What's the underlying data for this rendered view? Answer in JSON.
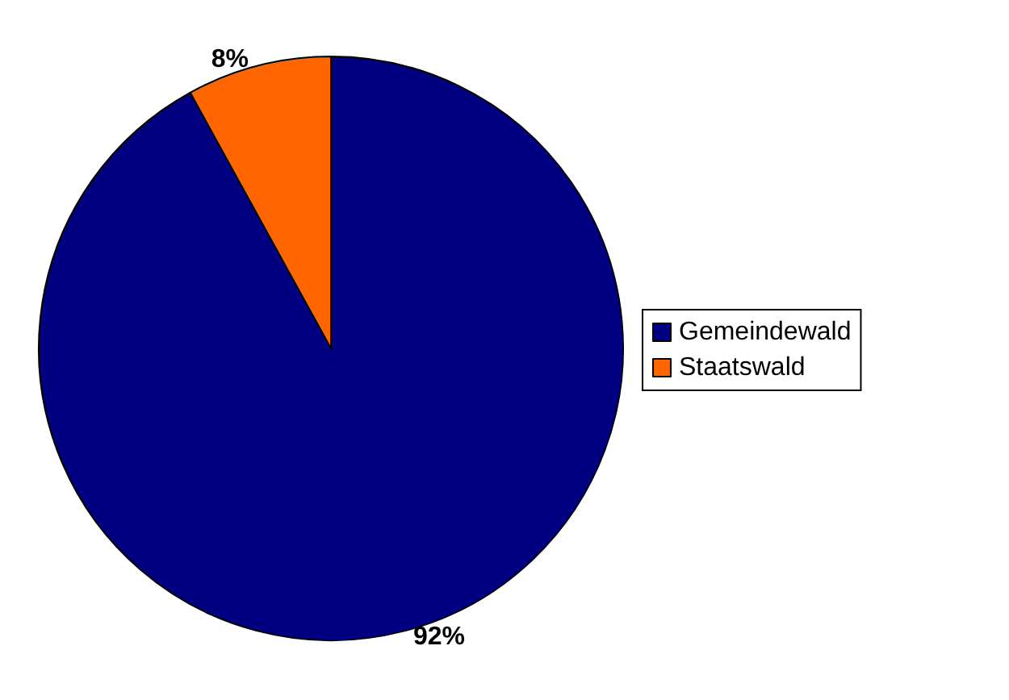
{
  "chart_data": {
    "type": "pie",
    "categories": [
      "Gemeindewald",
      "Staatswald"
    ],
    "values": [
      92,
      8
    ],
    "colors": [
      "#000080",
      "#ff6600"
    ],
    "value_labels": [
      "92%",
      "8%"
    ],
    "legend": "right"
  }
}
